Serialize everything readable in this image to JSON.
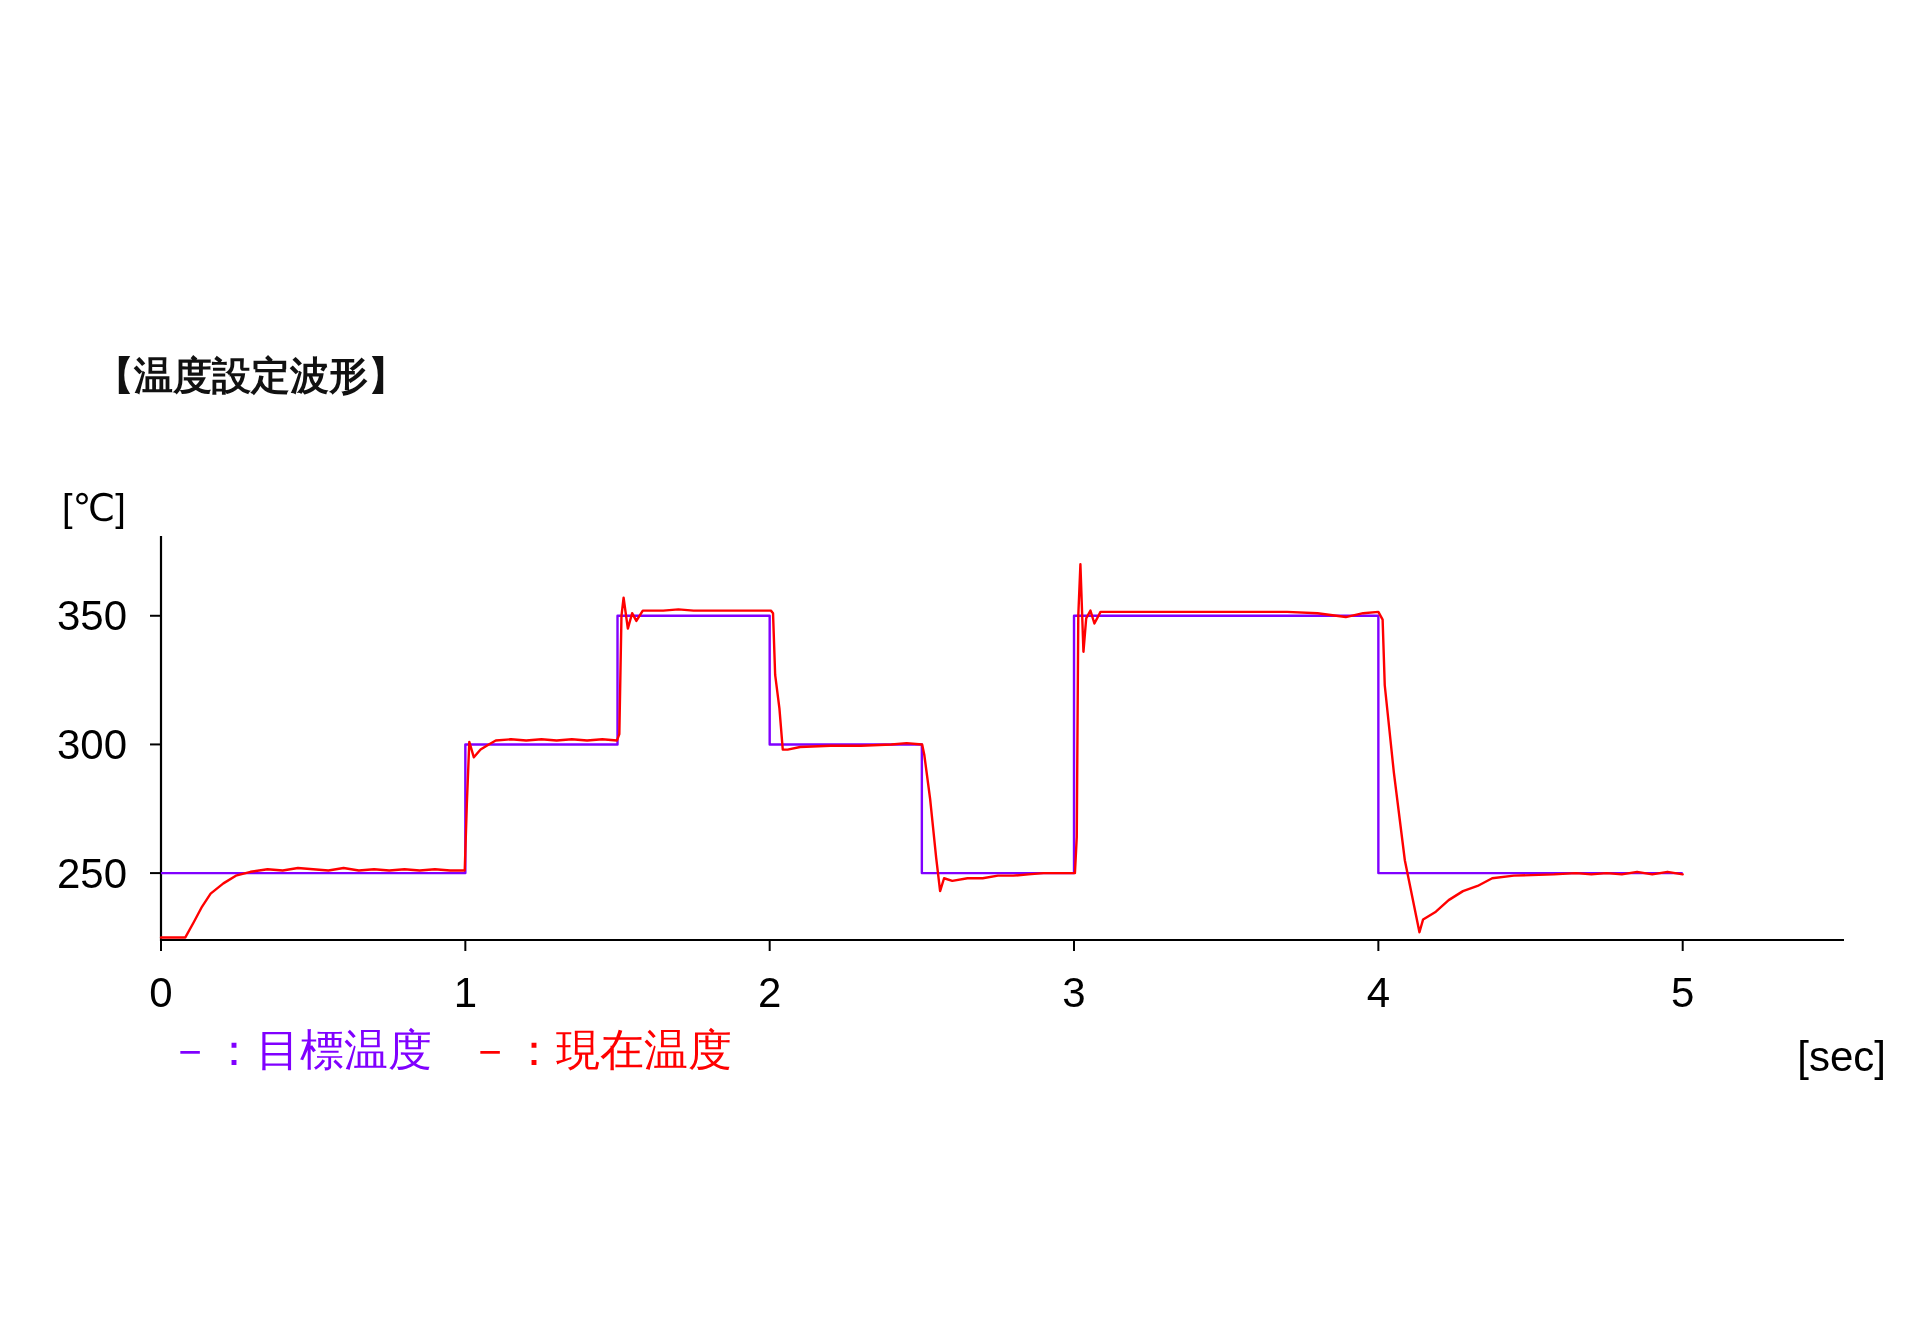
{
  "chart_data": {
    "type": "line",
    "title": "【温度設定波形】",
    "ylabel": "[℃]",
    "xlabel": "[sec]",
    "xlim": [
      0,
      5.53
    ],
    "xticks": [
      0,
      1,
      2,
      3,
      4,
      5
    ],
    "ylim": [
      224,
      381
    ],
    "yticks": [
      250,
      300,
      350
    ],
    "legend": "bottom left",
    "series": [
      {
        "name": "－：目標温度",
        "type": "step",
        "color": "#8000ff",
        "x": [
          0,
          1,
          1.5,
          2,
          2.5,
          3,
          4,
          5
        ],
        "values": [
          250,
          300,
          350,
          300,
          250,
          350,
          250,
          250
        ]
      },
      {
        "name": "－：現在温度",
        "color": "#ff0000",
        "x": [
          0,
          0.08,
          0.108,
          0.135,
          0.163,
          0.205,
          0.246,
          0.294,
          0.35,
          0.4,
          0.45,
          0.5,
          0.55,
          0.6,
          0.65,
          0.7,
          0.75,
          0.8,
          0.85,
          0.9,
          0.95,
          0.998,
          1.005,
          1.013,
          1.028,
          1.05,
          1.077,
          1.1,
          1.15,
          1.2,
          1.25,
          1.3,
          1.35,
          1.4,
          1.45,
          1.498,
          1.506,
          1.513,
          1.52,
          1.534,
          1.548,
          1.562,
          1.583,
          1.65,
          1.7,
          1.75,
          1.8,
          1.85,
          1.9,
          1.95,
          2.004,
          2.011,
          2.018,
          2.032,
          2.043,
          2.059,
          2.1,
          2.2,
          2.3,
          2.4,
          2.45,
          2.501,
          2.508,
          2.527,
          2.547,
          2.56,
          2.573,
          2.6,
          2.65,
          2.7,
          2.75,
          2.8,
          2.85,
          2.9,
          2.95,
          3.003,
          3.009,
          3.014,
          3.021,
          3.031,
          3.04,
          3.054,
          3.067,
          3.087,
          3.2,
          3.3,
          3.4,
          3.5,
          3.6,
          3.7,
          3.8,
          3.893,
          3.95,
          4.0,
          4.014,
          4.021,
          4.051,
          4.087,
          4.135,
          4.147,
          4.189,
          4.231,
          4.278,
          4.326,
          4.374,
          4.445,
          4.577,
          4.65,
          4.7,
          4.75,
          4.8,
          4.85,
          4.9,
          4.95,
          5.0
        ],
        "values": [
          225,
          225,
          231,
          237,
          242,
          246,
          249,
          250.5,
          251.5,
          251,
          252,
          251.5,
          251,
          252,
          251,
          251.5,
          251,
          251.5,
          251,
          251.5,
          251,
          251,
          277,
          301,
          295,
          298,
          300,
          301.5,
          302,
          301.5,
          302,
          301.5,
          302,
          301.5,
          302,
          301.5,
          304,
          350,
          357,
          345,
          351,
          348,
          352,
          352,
          352.5,
          352,
          352,
          352,
          352,
          352,
          352,
          351,
          327,
          314,
          298,
          298,
          299,
          299.5,
          299.5,
          300,
          300.5,
          300,
          296,
          279,
          256,
          243,
          248,
          247,
          248,
          248,
          249,
          249,
          249.5,
          250,
          250,
          250,
          264,
          350,
          370,
          336,
          349,
          352,
          347,
          351.5,
          351.5,
          351.5,
          351.5,
          351.5,
          351.5,
          351.5,
          351,
          349.5,
          351,
          351.5,
          348.5,
          323,
          289,
          255,
          227,
          232,
          235,
          239.5,
          243,
          245,
          248,
          249,
          249.5,
          250,
          249.5,
          250,
          249.5,
          250.5,
          249.5,
          250.5,
          249.5
        ]
      }
    ]
  }
}
